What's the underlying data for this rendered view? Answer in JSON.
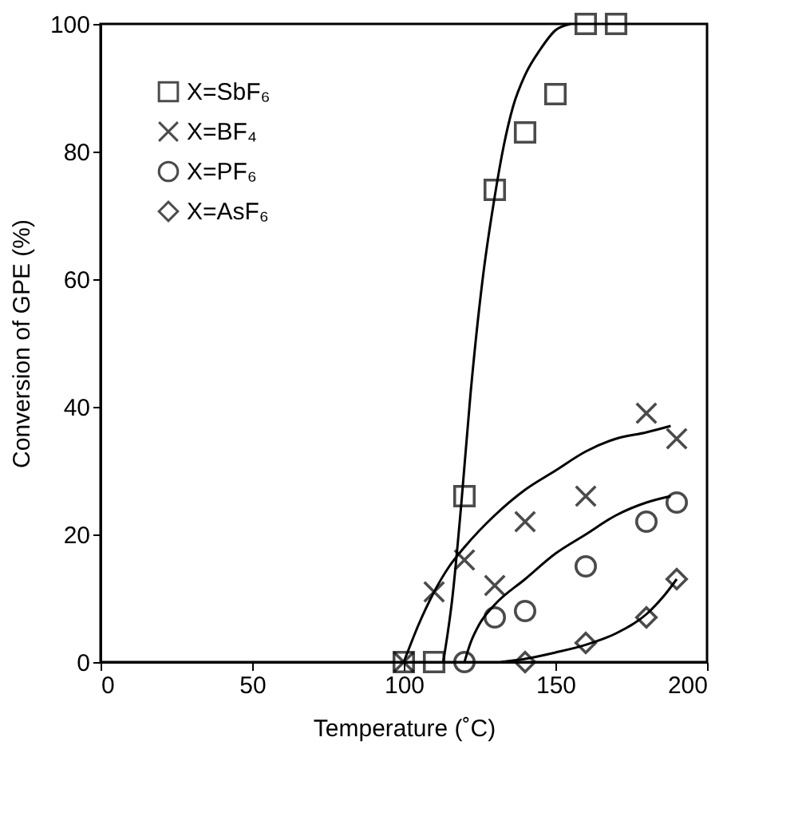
{
  "chart_data": {
    "type": "scatter",
    "xlabel": "Temperature (˚C)",
    "ylabel": "Conversion of GPE (%)",
    "xlim": [
      0,
      200
    ],
    "xticks": [
      0,
      50,
      100,
      150,
      200
    ],
    "ylim": [
      0,
      100
    ],
    "yticks": [
      0,
      20,
      40,
      60,
      80,
      100
    ],
    "grid": false,
    "legend": "top left",
    "series": [
      {
        "name": "X=SbF₆",
        "marker": "square",
        "color": "#000000",
        "x": [
          100,
          110,
          120,
          130,
          140,
          150,
          160,
          170
        ],
        "values": [
          0,
          0,
          26,
          74,
          83,
          89,
          100,
          100
        ]
      },
      {
        "name": "X=BF₄",
        "marker": "cross",
        "color": "#000000",
        "x": [
          100,
          110,
          120,
          130,
          140,
          160,
          180,
          190
        ],
        "values": [
          0,
          11,
          16,
          12,
          22,
          26,
          39,
          35
        ]
      },
      {
        "name": "X=PF₆",
        "marker": "circle",
        "color": "#000000",
        "x": [
          120,
          130,
          140,
          160,
          180,
          190
        ],
        "values": [
          0,
          7,
          8,
          15,
          22,
          25
        ]
      },
      {
        "name": "X=AsF₆",
        "marker": "diamond",
        "color": "#000000",
        "x": [
          140,
          160,
          180,
          190
        ],
        "values": [
          0,
          3,
          7,
          13
        ]
      },
      {
        "type": "line",
        "color": "#000000",
        "x": [
          113,
          116,
          119,
          122,
          126,
          130,
          133,
          136,
          140,
          145,
          150,
          155
        ],
        "values": [
          0,
          10,
          25,
          42,
          60,
          73,
          81,
          87,
          92,
          96,
          99,
          100
        ]
      },
      {
        "type": "line",
        "color": "#000000",
        "x": [
          100,
          105,
          110,
          115,
          120,
          130,
          140,
          150,
          160,
          170,
          180,
          188
        ],
        "values": [
          0,
          6,
          11,
          15,
          18,
          23,
          27,
          30,
          33,
          35,
          36,
          37
        ]
      },
      {
        "type": "line",
        "color": "#000000",
        "x": [
          120,
          122,
          125,
          130,
          140,
          150,
          160,
          170,
          180,
          188
        ],
        "values": [
          0,
          3,
          6,
          9,
          13,
          17,
          20,
          23,
          25,
          26
        ]
      },
      {
        "type": "line",
        "color": "#000000",
        "x": [
          132,
          140,
          150,
          160,
          170,
          180,
          186,
          190
        ],
        "values": [
          0,
          0.5,
          1.5,
          2.7,
          4.5,
          7.5,
          10.5,
          13
        ]
      }
    ]
  }
}
